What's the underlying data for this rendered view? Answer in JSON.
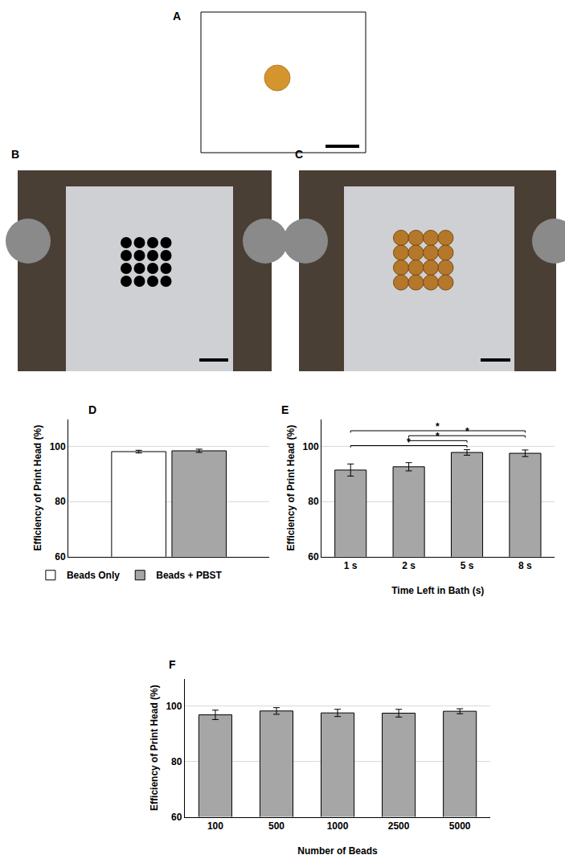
{
  "photo_panels": [
    "A",
    "B",
    "C"
  ],
  "chart_data": [
    {
      "panel": "D",
      "type": "bar",
      "y_label": "Efficiency of Print Head (%)",
      "categories": [
        null
      ],
      "series": [
        {
          "name": "Beads Only",
          "color": "#ffffff",
          "values": [
            98.2
          ],
          "errors": [
            0.5
          ]
        },
        {
          "name": "Beads + PBST",
          "color": "#a6a6a6",
          "values": [
            98.5
          ],
          "errors": [
            0.6
          ]
        }
      ],
      "ylim": [
        60,
        110
      ],
      "yticks": [
        60,
        80,
        100
      ],
      "grid": true,
      "legend": "bottom",
      "tick_labels": "y"
    },
    {
      "panel": "E",
      "type": "bar",
      "x_label": "Time Left in Bath (s)",
      "y_label": "Efficiency of Print Head (%)",
      "categories": [
        "1 s",
        "2 s",
        "5 s",
        "8 s"
      ],
      "values": [
        91.5,
        92.7,
        97.9,
        97.6
      ],
      "errors": [
        2.2,
        1.5,
        1.0,
        1.2
      ],
      "color": "#a6a6a6",
      "ylim": [
        60,
        110
      ],
      "yticks": [
        60,
        80,
        100
      ],
      "grid": true,
      "significance": [
        {
          "from": "1 s",
          "to": "5 s",
          "label": "*"
        },
        {
          "from": "2 s",
          "to": "5 s",
          "label": "*"
        },
        {
          "from": "2 s",
          "to": "8 s",
          "label": "*"
        },
        {
          "from": "1 s",
          "to": "8 s",
          "label": "*"
        }
      ]
    },
    {
      "panel": "F",
      "type": "bar",
      "x_label": "Number of Beads",
      "y_label": "Efficiency of Print Head (%)",
      "categories": [
        "100",
        "500",
        "1000",
        "2500",
        "5000"
      ],
      "values": [
        96.9,
        98.3,
        97.6,
        97.5,
        98.2
      ],
      "errors": [
        1.7,
        1.2,
        1.3,
        1.4,
        0.9
      ],
      "color": "#a6a6a6",
      "ylim": [
        60,
        110
      ],
      "yticks": [
        60,
        80,
        100
      ],
      "grid": true
    }
  ]
}
